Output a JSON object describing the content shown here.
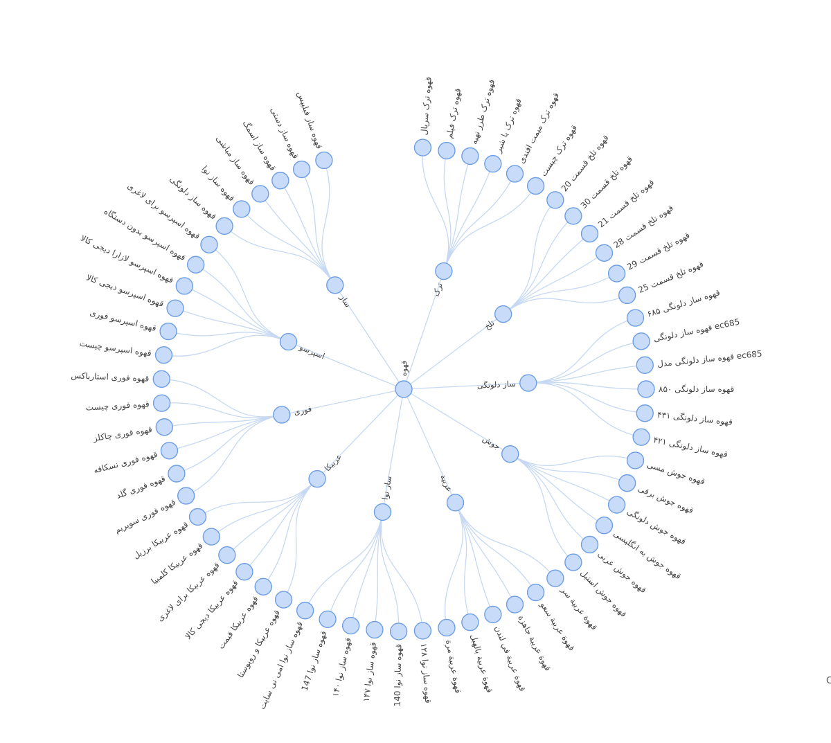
{
  "tree": {
    "name": "قهوه",
    "children": [
      {
        "name": "ترک",
        "children": [
          {
            "name": "قهوه ترک سرپال"
          },
          {
            "name": "قهوه ترک فیلم"
          },
          {
            "name": "قهوه ترک طرز تهیه"
          },
          {
            "name": "قهوه ترک با شیر"
          },
          {
            "name": "قهوه ترک میمت افندی"
          },
          {
            "name": "قهوه ترک چیست"
          }
        ]
      },
      {
        "name": "تلخ",
        "children": [
          {
            "name": "قهوه تلخ قسمت 20"
          },
          {
            "name": "قهوه تلخ قسمت 30"
          },
          {
            "name": "قهوه تلخ قسمت 21"
          },
          {
            "name": "قهوه تلخ قسمت 28"
          },
          {
            "name": "قهوه تلخ قسمت 29"
          },
          {
            "name": "قهوه تلخ قسمت 25"
          }
        ]
      },
      {
        "name": "ساز دلونگی",
        "children": [
          {
            "name": "قهوه ساز دلونگی ۶۸۵"
          },
          {
            "name": "قهوه ساز دلونگی ec685"
          },
          {
            "name": "قهوه ساز دلونگی مدل ec685"
          },
          {
            "name": "قهوه ساز دلونگی ۸۵۰"
          },
          {
            "name": "قهوه ساز دلونگی ۴۳۱"
          },
          {
            "name": "قهوه ساز دلونگی ۴۲۱"
          }
        ]
      },
      {
        "name": "جوش",
        "children": [
          {
            "name": "قهوه جوش مسی"
          },
          {
            "name": "قهوه جوش برقی"
          },
          {
            "name": "قهوه جوش دلونگی"
          },
          {
            "name": "قهوه جوش به انگلیسی"
          },
          {
            "name": "قهوه جوش عربی"
          },
          {
            "name": "قهوه جوش استیل"
          }
        ]
      },
      {
        "name": "عربية",
        "children": [
          {
            "name": "قهوة عربية سر"
          },
          {
            "name": "قهوة عربية سعو"
          },
          {
            "name": "قهوة عربية جاهزة"
          },
          {
            "name": "قهوة عربية في لندن"
          },
          {
            "name": "قهوة عربية بالهيل"
          },
          {
            "name": "قهوة عربية مرة"
          }
        ]
      },
      {
        "name": "ساز نوا",
        "children": [
          {
            "name": "قهوه ساز نوا ۱۲۸"
          },
          {
            "name": "قهوه ساز نوا 140"
          },
          {
            "name": "قهوه ساز نوا ۱۴۷"
          },
          {
            "name": "قهوه ساز نوا ۱۴۰"
          },
          {
            "name": "قهوه ساز نوا 147"
          },
          {
            "name": "قهوه ساز نوا امی نی سایت"
          }
        ]
      },
      {
        "name": "عربیکا",
        "children": [
          {
            "name": "قهوه عربیکا و روبوستا"
          },
          {
            "name": "قهوه عربیکا قیمت"
          },
          {
            "name": "قهوه عربیکا دیجی کالا"
          },
          {
            "name": "قهوه عربیکا برای لاغری"
          },
          {
            "name": "قهوه عربیکا کلمبیا"
          },
          {
            "name": "قهوه عربیکا برزیل"
          }
        ]
      },
      {
        "name": "فوری",
        "children": [
          {
            "name": "قهوه فوری سوپریم"
          },
          {
            "name": "قهوه فوری گلد"
          },
          {
            "name": "قهوه فوری نسکافه"
          },
          {
            "name": "قهوه فوری چاکلز"
          },
          {
            "name": "قهوه فوری چیست"
          },
          {
            "name": "قهوه فوری استارباکس"
          }
        ]
      },
      {
        "name": "اسپرسو",
        "children": [
          {
            "name": "قهوه اسپرسو چیست"
          },
          {
            "name": "قهوه اسپرسو فوری"
          },
          {
            "name": "قهوه اسپرسو دیجی کالا"
          },
          {
            "name": "قهوه اسپرسو لازارا دیجی کالا"
          },
          {
            "name": "قهوه اسپرسو بدون دستگاه"
          },
          {
            "name": "قهوه اسپرسو برای لاغری"
          }
        ]
      },
      {
        "name": "ساز",
        "children": [
          {
            "name": "قهوه ساز دلونگی"
          },
          {
            "name": "قهوه ساز نوا"
          },
          {
            "name": "قهوه ساز مباشی"
          },
          {
            "name": "قهوه ساز اسمگ"
          },
          {
            "name": "قهوه ساز دستی"
          },
          {
            "name": "قهوه ساز فیلیپس"
          }
        ]
      }
    ]
  },
  "edge_glyph": "C"
}
